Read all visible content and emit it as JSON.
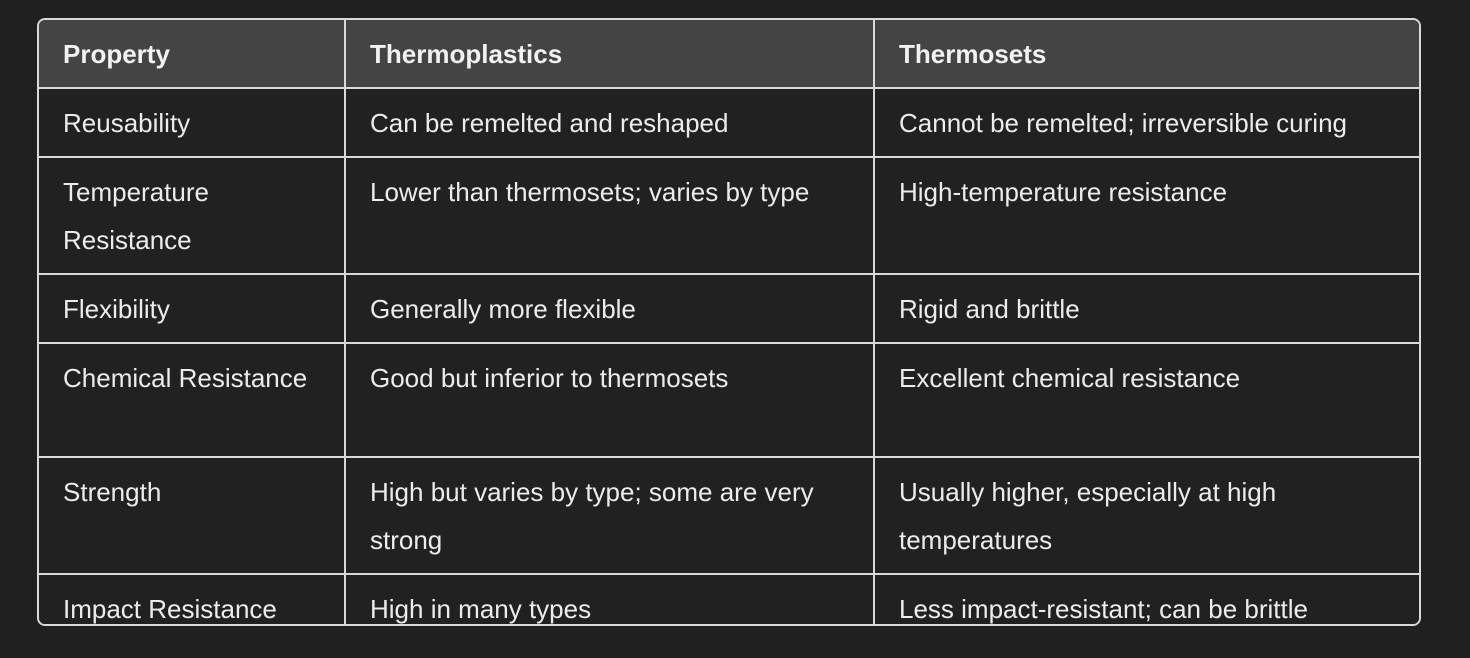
{
  "table": {
    "headers": [
      "Property",
      "Thermoplastics",
      "Thermosets"
    ],
    "rows": [
      [
        "Reusability",
        "Can be remelted and reshaped",
        "Cannot be remelted; irreversible curing"
      ],
      [
        "Temperature Resistance",
        "Lower than thermosets; varies by type",
        "High-temperature resistance"
      ],
      [
        "Flexibility",
        "Generally more flexible",
        "Rigid and brittle"
      ],
      [
        "Chemical Resistance",
        "Good but inferior to thermosets",
        "Excellent chemical resistance"
      ],
      [
        "Strength",
        "High but varies by type; some are very strong",
        "Usually higher, especially at high temperatures"
      ],
      [
        "Impact Resistance",
        "High in many types",
        "Less impact-resistant; can be brittle"
      ]
    ]
  }
}
